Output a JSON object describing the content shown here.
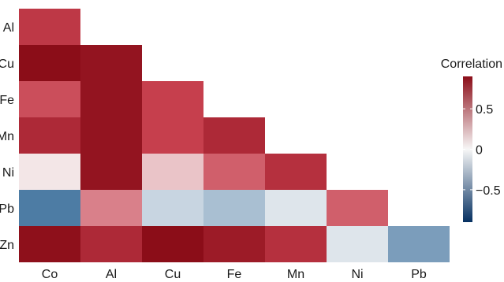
{
  "chart_data": {
    "type": "heatmap",
    "title": "",
    "xlabel": "",
    "ylabel": "",
    "x_categories": [
      "Co",
      "Al",
      "Cu",
      "Fe",
      "Mn",
      "Ni",
      "Pb"
    ],
    "y_categories": [
      "Al",
      "Cu",
      "Fe",
      "Mn",
      "Ni",
      "Pb",
      "Zn"
    ],
    "matrix_shape": "lower-triangle",
    "cells": [
      {
        "row": "Al",
        "col": "Co",
        "value": 0.6
      },
      {
        "row": "Cu",
        "col": "Co",
        "value": 0.9
      },
      {
        "row": "Cu",
        "col": "Al",
        "value": 0.85
      },
      {
        "row": "Fe",
        "col": "Co",
        "value": 0.5
      },
      {
        "row": "Fe",
        "col": "Al",
        "value": 0.85
      },
      {
        "row": "Fe",
        "col": "Cu",
        "value": 0.55
      },
      {
        "row": "Mn",
        "col": "Co",
        "value": 0.7
      },
      {
        "row": "Mn",
        "col": "Al",
        "value": 0.85
      },
      {
        "row": "Mn",
        "col": "Cu",
        "value": 0.55
      },
      {
        "row": "Mn",
        "col": "Fe",
        "value": 0.7
      },
      {
        "row": "Ni",
        "col": "Co",
        "value": 0.05
      },
      {
        "row": "Ni",
        "col": "Al",
        "value": 0.85
      },
      {
        "row": "Ni",
        "col": "Cu",
        "value": 0.15
      },
      {
        "row": "Ni",
        "col": "Fe",
        "value": 0.45
      },
      {
        "row": "Ni",
        "col": "Mn",
        "value": 0.65
      },
      {
        "row": "Pb",
        "col": "Co",
        "value": -0.55
      },
      {
        "row": "Pb",
        "col": "Al",
        "value": 0.35
      },
      {
        "row": "Pb",
        "col": "Cu",
        "value": -0.15
      },
      {
        "row": "Pb",
        "col": "Fe",
        "value": -0.25
      },
      {
        "row": "Pb",
        "col": "Mn",
        "value": -0.08
      },
      {
        "row": "Pb",
        "col": "Ni",
        "value": 0.45
      },
      {
        "row": "Zn",
        "col": "Co",
        "value": 0.88
      },
      {
        "row": "Zn",
        "col": "Al",
        "value": 0.7
      },
      {
        "row": "Zn",
        "col": "Cu",
        "value": 0.92
      },
      {
        "row": "Zn",
        "col": "Fe",
        "value": 0.8
      },
      {
        "row": "Zn",
        "col": "Mn",
        "value": 0.65
      },
      {
        "row": "Zn",
        "col": "Ni",
        "value": -0.08
      },
      {
        "row": "Zn",
        "col": "Pb",
        "value": -0.4
      }
    ],
    "color_scale": {
      "min": -0.9,
      "max": 0.9,
      "low_color": "#053061",
      "mid_color": "#f7f7f7",
      "high_color": "#8b0d18",
      "direction": "diverging"
    },
    "legend": {
      "title": "Correlation",
      "ticks": [
        {
          "value": 0.5,
          "label": "0.5"
        },
        {
          "value": 0,
          "label": "0"
        },
        {
          "value": -0.5,
          "label": "−0.5"
        }
      ],
      "placement": "right"
    },
    "grid": false
  }
}
